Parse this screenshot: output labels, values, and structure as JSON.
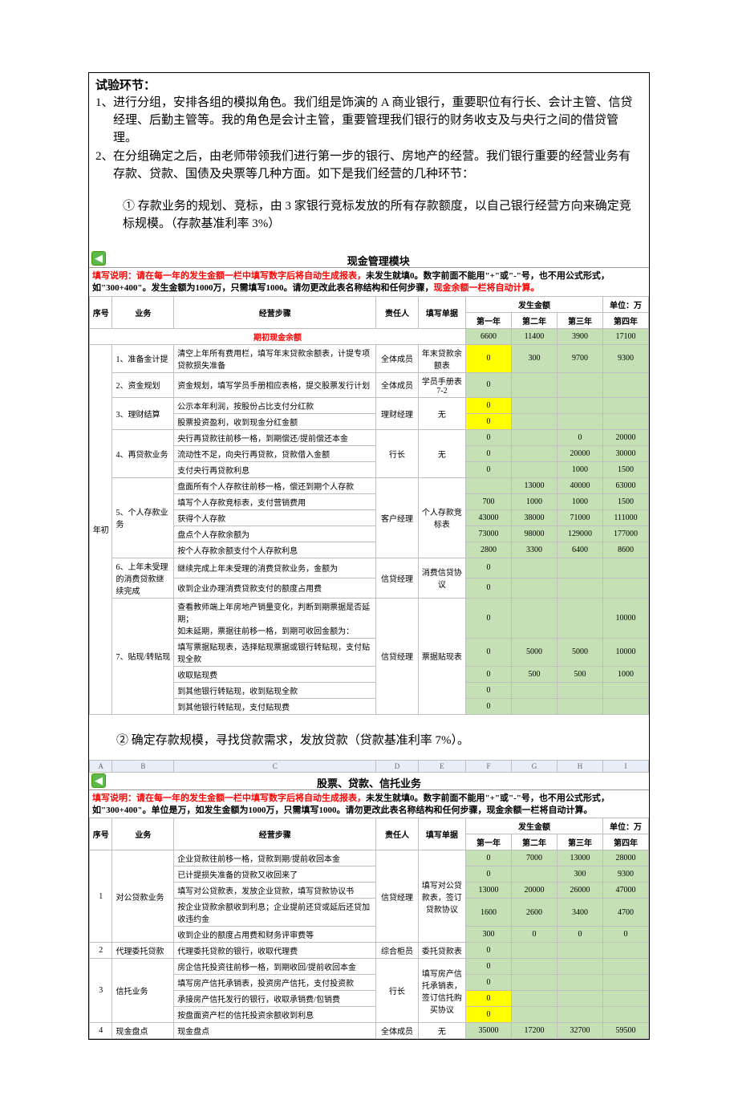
{
  "intro": {
    "title": "试验环节：",
    "p1_n": "1、",
    "p1": "进行分组，安排各组的模拟角色。我们组是饰演的 A 商业银行，重要职位有行长、会计主管、信贷经理、后勤主管等。我的角色是会计主管，重要管理我们银行的财务收支及与央行之间的借贷管理。",
    "p2_n": "2、",
    "p2": "在分组确定之后，由老师带领我们进行第一步的银行、房地产的经营。我们银行重要的经营业务有存款、贷款、国债及央票等几种方面。如下是我们经营的几种环节：",
    "s1": "① 存款业务的规划、竞标，由 3 家银行竞标发放的所有存款额度，以自己银行经营方向来确定竞标规模。（存款基准利率 3%）",
    "s2": "② 确定存款规模，寻找贷款需求，发放贷款（贷款基准利率 7%）。"
  },
  "mod1": {
    "title": "现金管理模块",
    "back": "◀",
    "warn_a": "填写说明：请在每一年的发生金额一栏中填写数字后将自动生成报表，",
    "warn_b": "未发生就填0。数字前面不能用\"+\"或\"-\"号，也不用公式形式，如\"300+400\"。发生金额为1000万，只需填写1000。请勿更改此表名称结构和任何步骤，",
    "warn_c": "现金余额一栏将自动计算。",
    "h_seq": "序号",
    "h_biz": "业务",
    "h_steps": "经营步骤",
    "h_resp": "责任人",
    "h_form": "填写单据",
    "h_amt": "发生金额",
    "h_unit": "单位：万",
    "h_y1": "第一年",
    "h_y2": "第二年",
    "h_y3": "第三年",
    "h_y4": "第四年",
    "row_init": "期初现金余额",
    "init": [
      "6600",
      "11400",
      "3900",
      "17100"
    ],
    "yearlabel": "年初",
    "biz": [
      {
        "no": "1、准备金计提",
        "resp": "全体成员",
        "form": "年末贷款余额表",
        "rows": [
          {
            "step": "清空上年所有费用栏，填写年末贷款余额表，计提专项贷款损失准备",
            "v": [
              "0",
              "300",
              "9700",
              "9300"
            ],
            "hl": [
              0
            ]
          }
        ]
      },
      {
        "no": "2、资金规划",
        "resp": "全体成员",
        "form": "学员手册表7-2",
        "rows": [
          {
            "step": "资金规划，填写学员手册相应表格，提交股票发行计划",
            "v": [
              "0",
              "",
              "",
              ""
            ]
          }
        ]
      },
      {
        "no": "3、理财结算",
        "resp": "理财经理",
        "form": "无",
        "rows": [
          {
            "step": "公示本年利润，按股份占比支付分红款",
            "v": [
              "0",
              "",
              "",
              ""
            ],
            "hl": [
              0
            ]
          },
          {
            "step": "股票投资盈利，收到现金分红金额",
            "v": [
              "0",
              "",
              "",
              ""
            ],
            "hl": [
              0
            ]
          }
        ]
      },
      {
        "no": "4、再贷款业务",
        "resp": "行长",
        "form": "无",
        "rows": [
          {
            "step": "央行再贷款往前移一格，到期偿还/提前偿还本金",
            "v": [
              "0",
              "",
              "0",
              "20000"
            ]
          },
          {
            "step": "流动性不足，向央行再贷款，贷款借入金额",
            "v": [
              "0",
              "",
              "20000",
              "30000"
            ]
          },
          {
            "step": "支付央行再贷款利息",
            "v": [
              "0",
              "",
              "1000",
              "1500"
            ]
          }
        ]
      },
      {
        "no": "5、个人存款业务",
        "resp": "客户经理",
        "form": "个人存款竞标表",
        "rows": [
          {
            "step": "盘面所有个人存款往前移一格，偿还到期个人存款",
            "v": [
              "",
              "13000",
              "40000",
              "63000"
            ]
          },
          {
            "step": "填写个人存款竞标表，支付营销费用",
            "v": [
              "700",
              "1000",
              "1000",
              "1500"
            ]
          },
          {
            "step": "获得个人存款",
            "v": [
              "43000",
              "38000",
              "71000",
              "111000"
            ]
          },
          {
            "step": "盘点个人存款余额为",
            "v": [
              "73000",
              "98000",
              "129000",
              "177000"
            ]
          },
          {
            "step": "按个人存款余额支付个人存款利息",
            "v": [
              "2800",
              "3300",
              "6400",
              "8600"
            ]
          }
        ]
      },
      {
        "no": "6、上年未受理的消费贷款继续完成",
        "resp": "信贷经理",
        "form": "消费信贷协议",
        "rows": [
          {
            "step": "继续完成上年未受理的消费贷款业务，金额为",
            "v": [
              "0",
              "",
              "",
              ""
            ]
          },
          {
            "step": "收到企业办理消费贷款支付的额度占用费",
            "v": [
              "0",
              "",
              "",
              ""
            ]
          }
        ]
      },
      {
        "no": "7、贴现/转贴现",
        "resp": "信贷经理",
        "form": "票据贴现表",
        "rows": [
          {
            "step": "查看教师端上年房地产销量变化，判断到期票据是否延期；\\n如未延期，票据往前移一格，到期可收回金额为：",
            "v": [
              "0",
              "",
              "",
              "10000"
            ]
          },
          {
            "step": "填写票据贴现表，选择贴现票据或银行转贴现，支付贴现全款",
            "v": [
              "0",
              "5000",
              "5000",
              "10000"
            ]
          },
          {
            "step": "收取贴现费",
            "v": [
              "0",
              "500",
              "500",
              "1000"
            ]
          },
          {
            "step": "到其他银行转贴现，收到贴现全款",
            "v": [
              "0",
              "",
              "",
              ""
            ]
          },
          {
            "step": "到其他银行转贴现，支付贴现费",
            "v": [
              "0",
              "",
              "",
              ""
            ]
          }
        ]
      }
    ]
  },
  "mod2": {
    "title": "股票、贷款、信托业务",
    "cols": [
      "A",
      "B",
      "C",
      "D",
      "E",
      "F",
      "G",
      "H",
      "I"
    ],
    "warn_a": "填写说明：请在每一年的发生金额一栏中填写数字后将自动生成报表，",
    "warn_b": "未发生就填0。数字前面不能用\"+\"或\"-\"号，也不用公式形式，如\"300+400\"。单位是万，如发生金额为1000万，只需填写1000。请勿更改此表名称结构和任何步骤，现金余额一栏将自动计算。",
    "h_seq": "序号",
    "h_biz": "业务",
    "h_steps": "经营步骤",
    "h_resp": "责任人",
    "h_form": "填写单据",
    "h_amt": "发生金额",
    "h_unit": "单位：万",
    "h_y1": "第一年",
    "h_y2": "第二年",
    "h_y3": "第三年",
    "h_y4": "第四年",
    "biz": [
      {
        "seq": "1",
        "name": "对公贷款业务",
        "resp": "信贷经理",
        "form": "填写对公贷款表，签订贷款协议",
        "rows": [
          {
            "step": "企业贷款往前移一格，贷款到期/提前收回本金",
            "v": [
              "0",
              "7000",
              "13000",
              "28000"
            ]
          },
          {
            "step": "已计提损失准备的贷款又收回来了",
            "v": [
              "0",
              "",
              "300",
              "9300"
            ]
          },
          {
            "step": "填写对公贷款表，发放企业贷款，填写贷款协议书",
            "v": [
              "13000",
              "20000",
              "26000",
              "47000"
            ]
          },
          {
            "step": "按企业贷款余额收到利息；企业提前还贷或延后还贷加收违约金",
            "v": [
              "1600",
              "2600",
              "3400",
              "4700"
            ]
          },
          {
            "step": "收到企业的额度占用费和财务评审费等",
            "v": [
              "300",
              "0",
              "0",
              "0"
            ]
          }
        ]
      },
      {
        "seq": "2",
        "name": "代理委托贷款",
        "resp": "综合柜员",
        "form": "委托贷款表",
        "rows": [
          {
            "step": "代理委托贷款的银行，收取代理费",
            "v": [
              "0",
              "",
              "",
              ""
            ]
          }
        ]
      },
      {
        "seq": "3",
        "name": "信托业务",
        "resp": "行长",
        "form": "填写房产信托承销表，签订信托购买协议",
        "rows": [
          {
            "step": "房企信托投资往前移一格，到期收回/提前收回本金",
            "v": [
              "0",
              "",
              "",
              ""
            ]
          },
          {
            "step": "填写房产信托承销表，投资房产信托，支付投资款",
            "v": [
              "0",
              "",
              "",
              ""
            ]
          },
          {
            "step": "承接房产信托发行的银行，收取承销费/包销费",
            "v": [
              "0",
              "",
              "",
              ""
            ],
            "hl": [
              0
            ]
          },
          {
            "step": "按盘面资产栏的信托投资余额收到利息",
            "v": [
              "0",
              "",
              "",
              ""
            ],
            "hl": [
              0
            ]
          }
        ]
      },
      {
        "seq": "4",
        "name": "现金盘点",
        "resp": "全体成员",
        "form": "无",
        "rows": [
          {
            "step": "现金盘点",
            "v": [
              "35000",
              "17200",
              "32700",
              "59500"
            ]
          }
        ]
      }
    ]
  }
}
